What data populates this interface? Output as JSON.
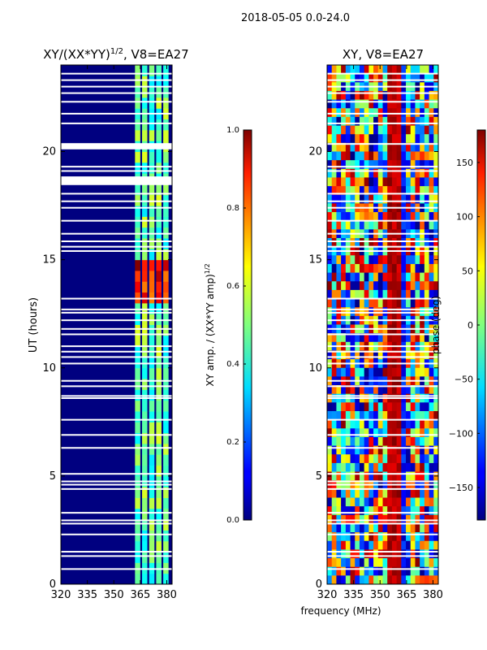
{
  "suptitle": "2018-05-05 0.0-24.0",
  "colors": {
    "background": "#000080",
    "gap": "#ffffff",
    "axis": "#000000"
  },
  "chart_data": [
    {
      "type": "heatmap",
      "title": "XY/(XX*YY)",
      "title_sup": "1/2",
      "title_suffix": ", V8=EA27",
      "xlabel": "",
      "ylabel": "UT (hours)",
      "xlim": [
        320,
        383
      ],
      "ylim": [
        0,
        24
      ],
      "xticks": [
        320,
        335,
        350,
        365,
        380
      ],
      "yticks": [
        0,
        5,
        10,
        15,
        20
      ],
      "colormap": "jet",
      "value_description": "normalized cross-correlation amplitude; low (~0) below 362 MHz, moderate (~0.3-0.6) in 362-382 MHz with stripes, peak ~0.9-1.0 near 13.5-15 h",
      "colorbar": {
        "label": "XY amp. / (XX*YY amp)",
        "label_sup": "1/2",
        "range": [
          0.0,
          1.0
        ],
        "ticks": [
          "0.0",
          "0.2",
          "0.4",
          "0.6",
          "0.8",
          "1.0"
        ]
      }
    },
    {
      "type": "heatmap",
      "title": "XY, V8=EA27",
      "xlabel": "frequency (MHz)",
      "ylabel": "",
      "xlim": [
        320,
        383
      ],
      "ylim": [
        0,
        24
      ],
      "xticks": [
        320,
        335,
        350,
        365,
        380
      ],
      "yticks": [
        0,
        5,
        10,
        15,
        20
      ],
      "colormap": "jet",
      "value_description": "cross-correlation phase in degrees; noisy phase below 355 MHz, coherent band near 355-362 MHz",
      "colorbar": {
        "label": "phase (deg)",
        "range": [
          -180,
          180
        ],
        "ticks": [
          "150",
          "100",
          "50",
          "0",
          "−50",
          "−100",
          "−150"
        ],
        "tick_values": [
          150,
          100,
          50,
          0,
          -50,
          -100,
          -150
        ]
      }
    }
  ],
  "flagged_gaps_hours": [
    0.7,
    1.3,
    1.5,
    2.3,
    2.8,
    2.95,
    3.3,
    4.4,
    4.6,
    4.75,
    5.1,
    6.3,
    6.9,
    7.6,
    8.6,
    8.7,
    9.15,
    9.4,
    10.2,
    10.5,
    10.75,
    11.0,
    11.55,
    11.8,
    12.2,
    12.55,
    12.7,
    13.2,
    15.4,
    15.6,
    15.85,
    16.2,
    16.8,
    17.4,
    17.7,
    18.05,
    19.1,
    19.3,
    20.35,
    21.3,
    21.75,
    22.3,
    22.7,
    23.0,
    23.3,
    23.6
  ]
}
